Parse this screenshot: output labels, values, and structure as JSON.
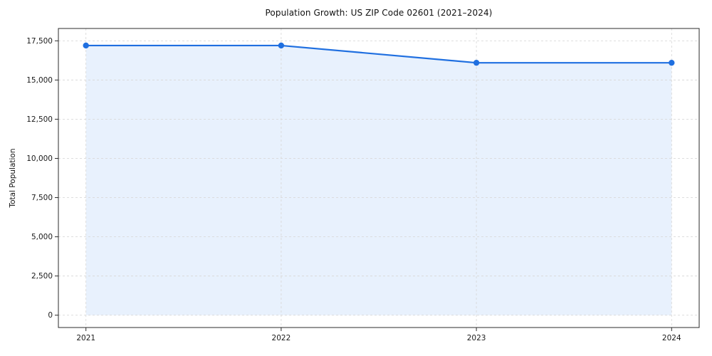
{
  "chart_data": {
    "type": "line",
    "title": "Population Growth: US ZIP Code 02601 (2021–2024)",
    "xlabel": "",
    "ylabel": "Total Population",
    "categories": [
      "2021",
      "2022",
      "2023",
      "2024"
    ],
    "series": [
      {
        "name": "Total Population",
        "values": [
          17200,
          17200,
          16100,
          16100
        ]
      }
    ],
    "ylim": [
      0,
      17500
    ],
    "yticks": [
      0,
      2500,
      5000,
      7500,
      10000,
      12500,
      15000,
      17500
    ],
    "grid": true,
    "grid_style": "dashed",
    "legend": "none",
    "area_fill": true,
    "marker": "circle",
    "colors": {
      "line": "#1f6fe0",
      "fill": "#e8f1fd",
      "grid": "#d9d9d9",
      "spine": "#2b2b2b",
      "tick_text": "#1a1a1a",
      "background": "#ffffff"
    }
  }
}
